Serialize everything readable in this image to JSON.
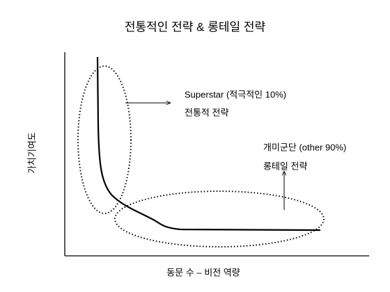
{
  "title": "전통적인 전략 & 롱테일 전략",
  "axes": {
    "y_label": "가치기여도",
    "x_label": "동문 수 – 비전 역량"
  },
  "annotations": [
    {
      "heading": "Superstar (적극적인 10%)",
      "strategy": "전통적 전략"
    },
    {
      "heading": "개미군단 (other 90%)",
      "strategy": "롱테일 전략"
    }
  ]
}
